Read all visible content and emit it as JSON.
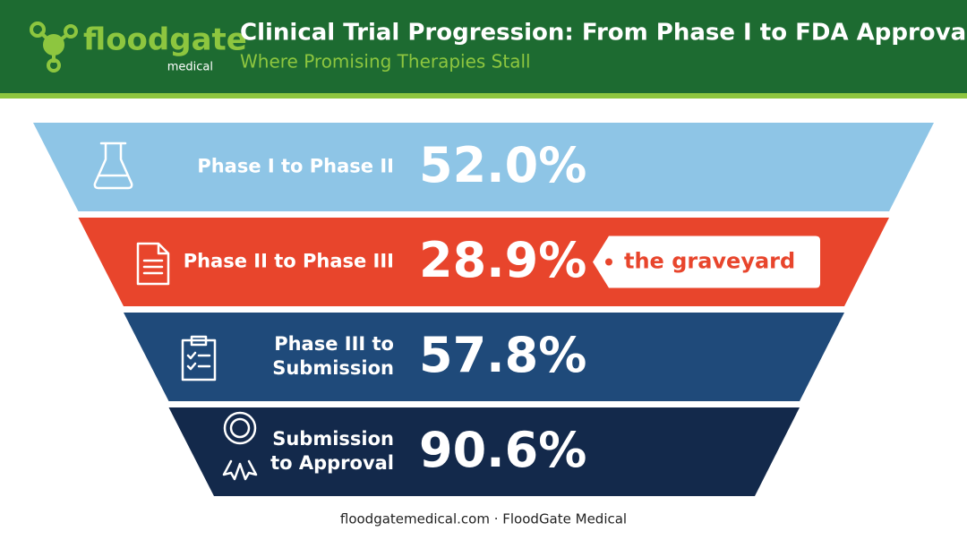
{
  "header": {
    "logo": {
      "name": "floodgate",
      "sub": "medical"
    },
    "title": "Clinical Trial Progression: From Phase I to FDA Approval",
    "subtitle": "Where Promising Therapies Stall"
  },
  "stages": [
    {
      "label_lines": [
        "Phase I to Phase II"
      ],
      "value": "52.0%"
    },
    {
      "label_lines": [
        "Phase II to Phase III"
      ],
      "value": "28.9%",
      "note": "the graveyard"
    },
    {
      "label_lines": [
        "Phase III to",
        "Submission"
      ],
      "value": "57.8%"
    },
    {
      "label_lines": [
        "Submission",
        "to Approval"
      ],
      "value": "90.6%"
    }
  ],
  "footer": "floodgatemedical.com · FloodGate Medical"
}
